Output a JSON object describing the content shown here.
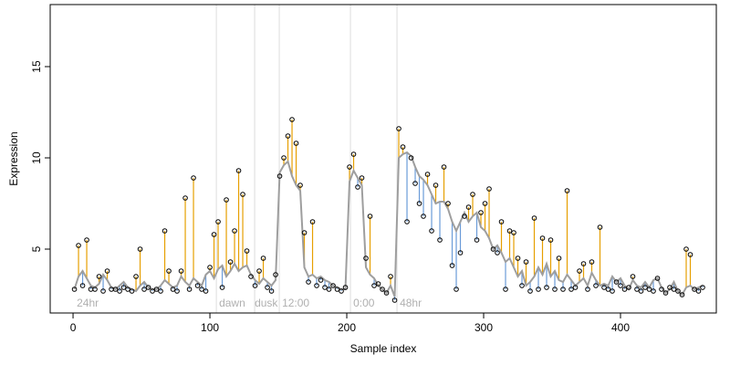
{
  "chart_data": {
    "type": "scatter",
    "xlabel": "Sample index",
    "ylabel": "Expression",
    "xlim": [
      -16.7,
      470
    ],
    "ylim": [
      1.5,
      18.4
    ],
    "xticks": [
      0,
      100,
      200,
      300,
      400
    ],
    "yticks": [
      5,
      10,
      15
    ],
    "point_color": "#000000",
    "fit_color": "#9e9e9e",
    "above_color": "#e69f00",
    "below_color": "#6a9bd8",
    "vline_color": "#dddddd",
    "vlines": [
      104.7,
      132.7,
      150.7,
      202.7,
      236.7
    ],
    "annotations": [
      {
        "x": 2.7,
        "label": "24hr"
      },
      {
        "x": 106.7,
        "label": "dawn"
      },
      {
        "x": 132.7,
        "label": "dusk"
      },
      {
        "x": 152.7,
        "label": "12:00"
      },
      {
        "x": 204.7,
        "label": "0:00"
      },
      {
        "x": 238.7,
        "label": "48hr"
      }
    ],
    "x": [
      1,
      4,
      7,
      10,
      13,
      16,
      19,
      22,
      25,
      28,
      31,
      34,
      37,
      40,
      43,
      46,
      49,
      52,
      55,
      58,
      61,
      64,
      67,
      70,
      73,
      76,
      79,
      82,
      85,
      88,
      91,
      94,
      97,
      100,
      103,
      106,
      109,
      112,
      115,
      118,
      121,
      124,
      127,
      130,
      133,
      136,
      139,
      142,
      145,
      148,
      151,
      154,
      157,
      160,
      163,
      166,
      169,
      172,
      175,
      178,
      181,
      184,
      187,
      190,
      193,
      196,
      199,
      202,
      205,
      208,
      211,
      214,
      217,
      220,
      223,
      226,
      229,
      232,
      235,
      238,
      241,
      244,
      247,
      250,
      253,
      256,
      259,
      262,
      265,
      268,
      271,
      274,
      277,
      280,
      283,
      286,
      289,
      292,
      295,
      298,
      301,
      304,
      307,
      310,
      313,
      316,
      319,
      322,
      325,
      328,
      331,
      334,
      337,
      340,
      343,
      346,
      349,
      352,
      355,
      358,
      361,
      364,
      367,
      370,
      373,
      376,
      379,
      382,
      385,
      388,
      391,
      394,
      397,
      400,
      403,
      406,
      409,
      412,
      415,
      418,
      421,
      424,
      427,
      430,
      433,
      436,
      439,
      442,
      445,
      448,
      451,
      454,
      457,
      460
    ],
    "values": [
      2.8,
      5.2,
      3.0,
      5.5,
      2.8,
      2.8,
      3.5,
      2.7,
      3.8,
      2.8,
      2.8,
      2.7,
      2.9,
      2.8,
      2.7,
      3.5,
      5.0,
      2.8,
      2.9,
      2.7,
      2.8,
      2.7,
      6.0,
      3.8,
      2.8,
      2.7,
      3.8,
      7.8,
      2.8,
      8.9,
      3.0,
      2.8,
      2.7,
      4.0,
      5.8,
      6.5,
      2.9,
      7.7,
      4.3,
      6.0,
      9.3,
      8.0,
      4.9,
      3.5,
      3.0,
      3.8,
      4.5,
      2.9,
      2.7,
      3.6,
      9.0,
      10.0,
      11.2,
      12.1,
      10.8,
      8.5,
      5.9,
      3.2,
      6.5,
      3.0,
      3.3,
      2.9,
      2.8,
      3.0,
      2.8,
      2.7,
      2.9,
      9.5,
      10.2,
      8.4,
      8.9,
      4.5,
      6.8,
      3.0,
      3.1,
      2.8,
      2.6,
      3.5,
      2.2,
      11.6,
      10.6,
      6.5,
      10.0,
      8.6,
      7.5,
      6.8,
      9.1,
      6.0,
      8.5,
      5.5,
      9.5,
      7.5,
      4.1,
      2.8,
      4.8,
      6.8,
      7.3,
      8.0,
      5.5,
      7.0,
      7.5,
      8.3,
      5.0,
      4.8,
      6.5,
      2.8,
      6.0,
      5.9,
      4.5,
      3.0,
      4.3,
      2.7,
      6.7,
      2.8,
      5.6,
      2.9,
      5.5,
      2.8,
      4.5,
      2.8,
      8.2,
      2.8,
      2.9,
      3.8,
      4.2,
      2.8,
      4.3,
      3.0,
      6.2,
      2.9,
      2.8,
      2.7,
      3.2,
      3.0,
      2.8,
      2.9,
      3.5,
      2.8,
      2.7,
      2.9,
      2.8,
      2.7,
      3.4,
      2.8,
      2.6,
      2.9,
      2.8,
      2.7,
      2.5,
      5.0,
      4.7,
      2.8,
      2.7,
      2.9
    ],
    "fitted": [
      2.8,
      3.5,
      3.8,
      3.4,
      3.0,
      2.9,
      3.1,
      3.6,
      3.3,
      2.9,
      2.8,
      3.0,
      3.2,
      2.9,
      2.8,
      2.7,
      3.0,
      3.2,
      2.9,
      2.8,
      2.8,
      3.0,
      3.3,
      3.1,
      2.9,
      3.0,
      3.5,
      3.2,
      3.0,
      3.4,
      3.2,
      3.0,
      3.6,
      3.8,
      3.4,
      3.9,
      4.1,
      3.5,
      3.8,
      4.2,
      3.8,
      4.0,
      4.1,
      3.6,
      3.3,
      3.1,
      3.4,
      3.2,
      3.0,
      3.3,
      9.2,
      9.6,
      9.8,
      9.0,
      8.5,
      8.2,
      4.0,
      3.5,
      3.6,
      3.4,
      3.5,
      3.3,
      3.2,
      3.0,
      2.9,
      2.8,
      2.8,
      8.7,
      9.3,
      8.9,
      8.5,
      4.0,
      3.6,
      3.4,
      3.0,
      2.8,
      2.6,
      3.0,
      2.4,
      10.0,
      10.2,
      10.3,
      10.1,
      9.5,
      9.0,
      8.8,
      8.5,
      8.0,
      7.5,
      7.6,
      7.6,
      7.2,
      6.5,
      6.0,
      6.5,
      7.0,
      6.5,
      6.8,
      7.0,
      6.2,
      6.0,
      5.6,
      5.0,
      5.2,
      4.8,
      4.3,
      4.5,
      4.0,
      3.5,
      3.8,
      3.0,
      3.2,
      3.5,
      4.0,
      3.6,
      4.2,
      3.5,
      3.8,
      3.3,
      3.2,
      3.6,
      3.3,
      3.0,
      3.2,
      3.4,
      3.0,
      3.7,
      3.3,
      3.0,
      3.1,
      3.0,
      3.5,
      3.2,
      3.4,
      3.0,
      2.8,
      3.3,
      3.0,
      2.9,
      3.2,
      2.9,
      3.3,
      3.4,
      2.9,
      2.6,
      2.8,
      3.2,
      2.7,
      2.5,
      2.9,
      3.0,
      2.8,
      2.9,
      3.0
    ]
  }
}
